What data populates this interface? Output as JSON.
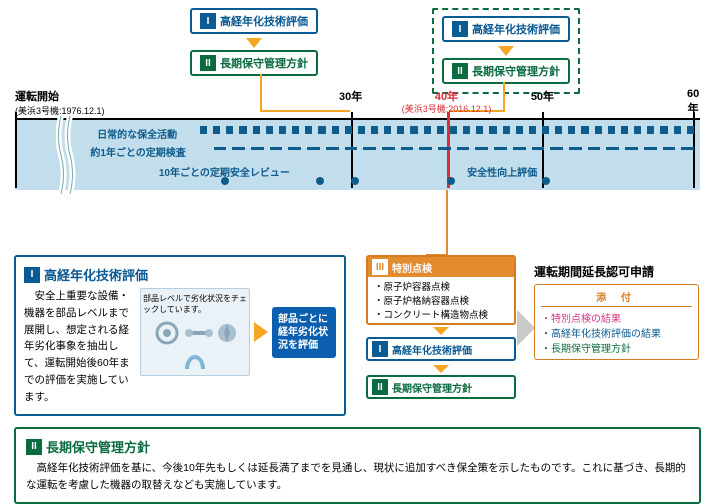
{
  "colors": {
    "blue": "#0a5a93",
    "green": "#0a6b3f",
    "orange": "#d77c1e",
    "orange_fill": "#e28b2f",
    "yellow_arrow": "#f5a623",
    "red": "#d72e3a",
    "band_blue": "#c2ddec",
    "dot_blue": "#0d5c8c",
    "pink": "#d63384",
    "grey_arrow": "#c9c9c9"
  },
  "boxes": {
    "I_label": "高経年化技術評価",
    "II_label": "長期保守管理方針",
    "III_label": "特別点検",
    "badge_I": "I",
    "badge_II": "II",
    "badge_III": "III"
  },
  "timeline": {
    "start_label": "運転開始",
    "start_sub": "(美浜3号機:1976.12.1)",
    "ticks": [
      {
        "pct": 7,
        "label": "",
        "sub": "",
        "wavy": true
      },
      {
        "pct": 49,
        "label": "30年"
      },
      {
        "pct": 63,
        "label": "40年",
        "sub": "(美浜3号機:2016.12.1)",
        "red": true
      },
      {
        "pct": 77,
        "label": "50年"
      },
      {
        "pct": 99,
        "label": "60年"
      }
    ],
    "rows": {
      "daily": "日常的な保全活動",
      "annual": "約1年ごとの定期検査",
      "tenyear": "10年ごとの定期安全レビュー",
      "improve": "安全性向上評価"
    },
    "review_dots_pct": [
      30,
      44,
      49,
      63,
      77
    ]
  },
  "panel_I": {
    "title": "高経年化技術評価",
    "body": "　安全上重要な設備・機器を部品レベルまで展開し、想定される経年劣化事象を抽出して、運転開始後60年までの評価を実施しています。",
    "illust_caption": "部品レベルで劣化状況をチェックしています。",
    "illust_parts": [
      "主軸",
      "羽根車",
      "ボルト・ナット",
      "ケーシングカバー"
    ],
    "callout": "部品ごとに経年劣化状況を評価"
  },
  "box_III_items": [
    "・原子炉容器点検",
    "・原子炉格納容器点検",
    "・コンクリート構造物点検"
  ],
  "right": {
    "title": "運転期間延長認可申請",
    "attach_head": "添 付",
    "items": [
      {
        "text": "・特別点検の結果",
        "color": "#d63384"
      },
      {
        "text": "・高経年化技術評価の結果",
        "color": "#0a5a93"
      },
      {
        "text": "・長期保守管理方針",
        "color": "#0a6b3f"
      }
    ]
  },
  "panel_II": {
    "title": "長期保守管理方針",
    "body": "　高経年化技術評価を基に、今後10年先もしくは延長満了までを見通し、現状に追加すべき保全策を示したものです。これに基づき、長期的な運転を考慮した機器の取替えなども実施しています。"
  }
}
